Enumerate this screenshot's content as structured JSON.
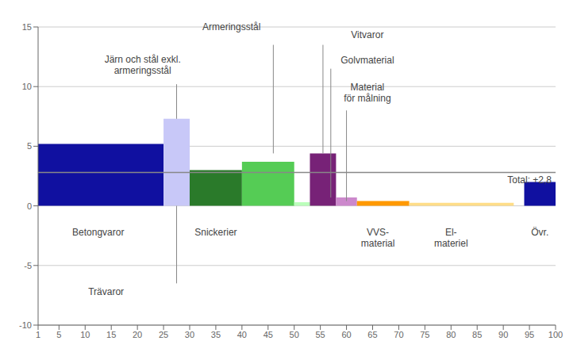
{
  "chart_data": {
    "type": "bar",
    "x_left": [
      1,
      25,
      30,
      40,
      50,
      53,
      58,
      62,
      72,
      94
    ],
    "x_right": [
      25,
      30,
      40,
      50,
      55,
      58,
      62,
      72,
      92,
      100
    ],
    "values": [
      5.2,
      7.3,
      3.0,
      3.7,
      0.3,
      4.4,
      0.7,
      0.4,
      0.25,
      2.0
    ],
    "colors": [
      "#1010a0",
      "#c8c8f8",
      "#2a7a2a",
      "#55cc55",
      "#bbffbb",
      "#772277",
      "#cc88cc",
      "#ff9900",
      "#ffdd88",
      "#1010a0"
    ],
    "xlim": [
      1,
      100
    ],
    "ylim": [
      -10,
      15
    ],
    "xticks": [
      1,
      5,
      10,
      15,
      20,
      25,
      30,
      35,
      40,
      45,
      50,
      55,
      60,
      65,
      70,
      75,
      80,
      85,
      90,
      95,
      100
    ],
    "yticks": [
      -10,
      -5,
      0,
      5,
      10,
      15
    ],
    "grid": true,
    "reference_line": {
      "y": 2.8,
      "label": "Total: +2,8"
    },
    "annotations": [
      {
        "text": "Betongvaror",
        "x": 12.5,
        "y": -1.5
      },
      {
        "text": "Snickerier",
        "x": 35,
        "y": -1.5
      },
      {
        "text": "VVS-\nmaterial",
        "x": 66,
        "y": -1.5
      },
      {
        "text": "El-\nmateriel",
        "x": 80,
        "y": -1.5
      },
      {
        "text": "Övr.",
        "x": 97,
        "y": -1.5
      },
      {
        "text": "Armeringsstål",
        "x": 38,
        "y": 14.5,
        "line": [
          [
            46,
            13.5
          ],
          [
            46,
            4.4
          ]
        ]
      },
      {
        "text": "Järn och stål exkl.\narmeringsstål",
        "x": 21,
        "y": 10.8,
        "line": [
          [
            27.5,
            10.2
          ],
          [
            27.5,
            7.3
          ]
        ]
      },
      {
        "text": "Vitvaror",
        "x": 64,
        "y": 13.8,
        "line": [
          [
            55.5,
            13.5
          ],
          [
            55.5,
            4.4
          ]
        ]
      },
      {
        "text": "Golvmaterial",
        "x": 64,
        "y": 11.7,
        "line": [
          [
            57,
            11.5
          ],
          [
            57,
            0.7
          ]
        ]
      },
      {
        "text": "Material\nför målning",
        "x": 64,
        "y": 8.5,
        "line": [
          [
            60,
            8.0
          ],
          [
            60,
            0.4
          ]
        ]
      },
      {
        "text": "Trävaror",
        "x": 14,
        "y": -6.5,
        "line": [
          [
            27.5,
            -6.5
          ],
          [
            27.5,
            0
          ]
        ]
      }
    ]
  }
}
